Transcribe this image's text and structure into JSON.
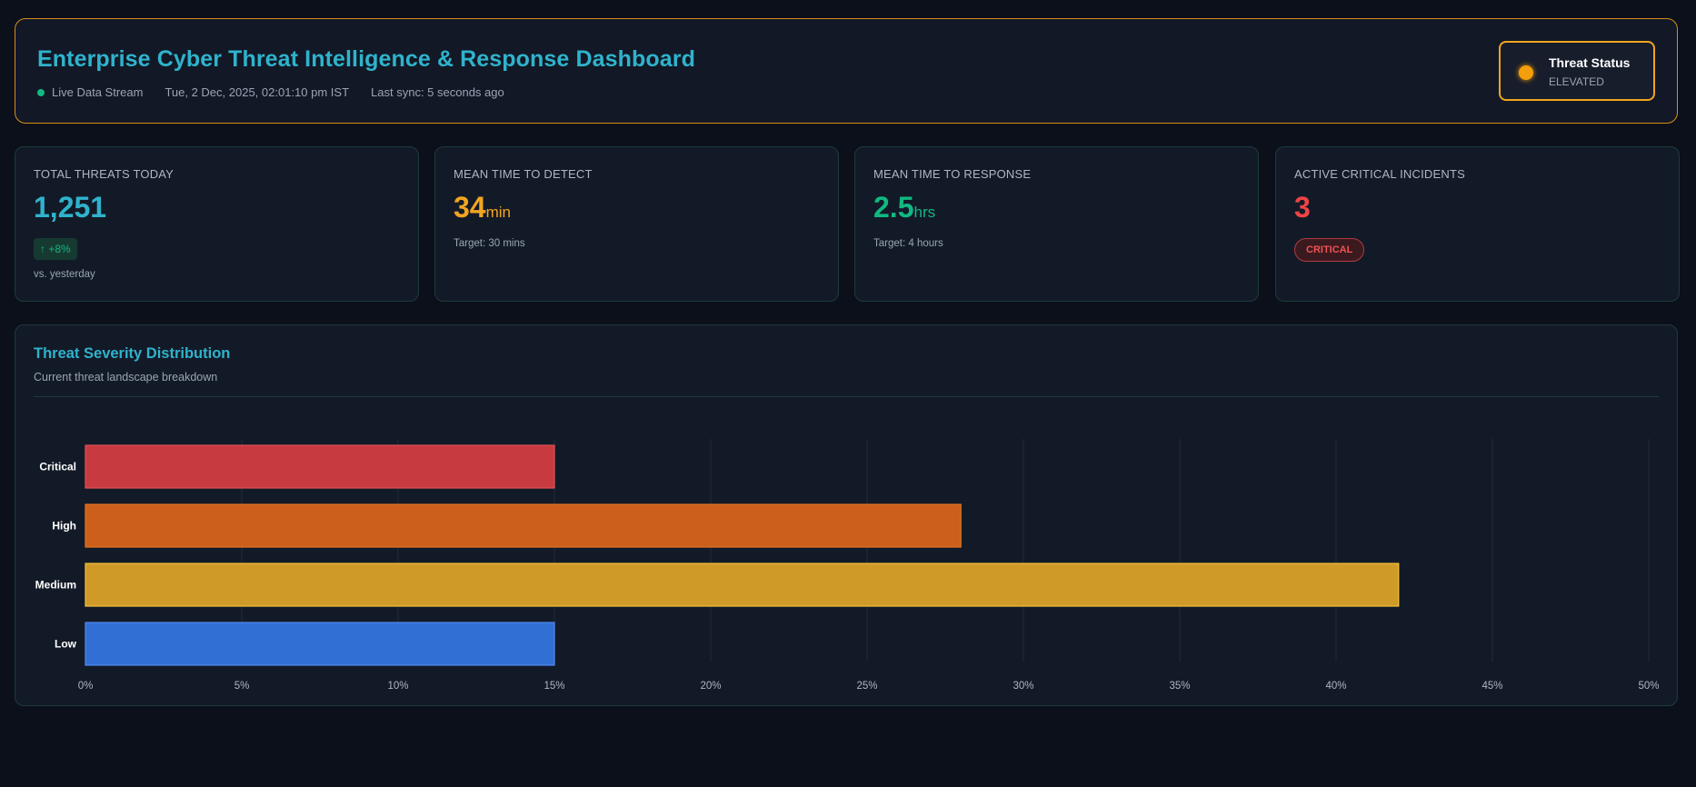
{
  "header": {
    "title": "Enterprise Cyber Threat Intelligence & Response Dashboard",
    "live_label": "Live Data Stream",
    "datetime": "Tue, 2 Dec, 2025, 02:01:10 pm IST",
    "last_sync": "Last sync: 5 seconds ago",
    "status_title": "Threat Status",
    "status_value": "ELEVATED"
  },
  "cards": [
    {
      "label": "TOTAL THREATS TODAY",
      "value": "1,251",
      "unit": "",
      "badge": "↑ +8%",
      "sub": "vs. yesterday",
      "color": "#2fb3cc"
    },
    {
      "label": "MEAN TIME TO DETECT",
      "value": "34",
      "unit": "min",
      "sub": "Target: 30 mins",
      "color": "#f2a520"
    },
    {
      "label": "MEAN TIME TO RESPONSE",
      "value": "2.5",
      "unit": "hrs",
      "sub": "Target: 4 hours",
      "color": "#10b981"
    },
    {
      "label": "ACTIVE CRITICAL INCIDENTS",
      "value": "3",
      "unit": "",
      "badge": "CRITICAL",
      "color": "#f04444"
    }
  ],
  "colors": {
    "accent": "#2fb3cc",
    "status": "#f59e0b",
    "positive": "#10b981",
    "critical": "#f04444"
  },
  "chart_panel": {
    "title": "Threat Severity Distribution",
    "subtitle": "Current threat landscape breakdown"
  },
  "chart_data": {
    "type": "bar",
    "orientation": "horizontal",
    "categories": [
      "Critical",
      "High",
      "Medium",
      "Low"
    ],
    "values": [
      15,
      28,
      42,
      15
    ],
    "colors": [
      "#c73a3f",
      "#cc5f1c",
      "#cf9a28",
      "#326fd4"
    ],
    "border_colors": [
      "#e05257",
      "#e2761f",
      "#f5c23a",
      "#4f8cf0"
    ],
    "xlim": [
      0,
      50
    ],
    "xticks": [
      "0%",
      "5%",
      "10%",
      "15%",
      "20%",
      "25%",
      "30%",
      "35%",
      "40%",
      "45%",
      "50%"
    ],
    "xtick_values": [
      0,
      5,
      10,
      15,
      20,
      25,
      30,
      35,
      40,
      45,
      50
    ],
    "grid": true,
    "legend": "none"
  }
}
